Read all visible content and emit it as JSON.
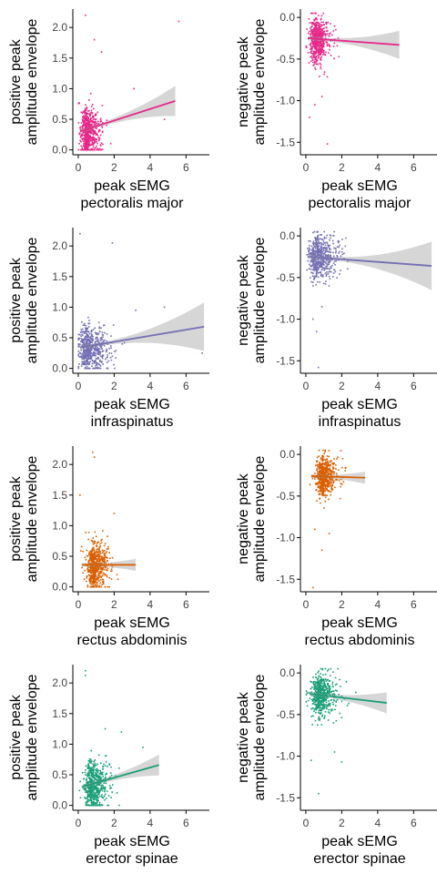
{
  "chart_data": [
    {
      "type": "scatter",
      "ylabel_lines": [
        "positive peak",
        "amplitude envelope"
      ],
      "xlabel_lines": [
        "peak sEMG",
        "pectoralis major"
      ],
      "xlim": [
        -0.3,
        7.3
      ],
      "ylim": [
        -0.08,
        2.3
      ],
      "xticks": [
        0,
        2,
        4,
        6
      ],
      "yticks": [
        0.0,
        0.5,
        1.0,
        1.5,
        2.0
      ],
      "color": "#E7298A",
      "fit": {
        "x0": 0.1,
        "y0": 0.3,
        "x1": 5.4,
        "y1": 0.8
      },
      "cloud": {
        "cx": 0.55,
        "sx": 0.45,
        "xmax": 5.6,
        "cy": 0.3,
        "sy": 0.2,
        "ymin": 0.0,
        "ymax": 1.8,
        "n": 600,
        "seed": 11
      },
      "outliers": [
        [
          0.4,
          2.2
        ],
        [
          5.6,
          2.1
        ],
        [
          0.9,
          1.8
        ],
        [
          1.3,
          1.6
        ],
        [
          3.1,
          1.0
        ],
        [
          4.8,
          0.5
        ]
      ]
    },
    {
      "type": "scatter",
      "ylabel_lines": [
        "negative peak",
        "amplitude envelope"
      ],
      "xlabel_lines": [
        "peak sEMG",
        "pectoralis major"
      ],
      "xlim": [
        -0.3,
        7.3
      ],
      "ylim": [
        -1.65,
        0.1
      ],
      "xticks": [
        0,
        2,
        4,
        6
      ],
      "yticks": [
        0.0,
        -0.5,
        -1.0,
        -1.5
      ],
      "color": "#E7298A",
      "fit": {
        "x0": 0.1,
        "y0": -0.25,
        "x1": 5.2,
        "y1": -0.33
      },
      "cloud": {
        "cx": 0.6,
        "sx": 0.45,
        "xmax": 5.0,
        "cy": -0.27,
        "sy": 0.14,
        "ymin": -0.9,
        "ymax": 0.05,
        "n": 550,
        "seed": 23
      },
      "outliers": [
        [
          0.2,
          -1.2
        ],
        [
          1.2,
          -1.52
        ],
        [
          0.5,
          -1.05
        ],
        [
          0.9,
          -0.95
        ]
      ]
    },
    {
      "type": "scatter",
      "ylabel_lines": [
        "positive peak",
        "amplitude envelope"
      ],
      "xlabel_lines": [
        "peak sEMG",
        "infraspinatus"
      ],
      "xlim": [
        -0.3,
        7.3
      ],
      "ylim": [
        -0.08,
        2.3
      ],
      "xticks": [
        0,
        2,
        4,
        6
      ],
      "yticks": [
        0.0,
        0.5,
        1.0,
        1.5,
        2.0
      ],
      "color": "#7570B3",
      "fit": {
        "x0": 0.1,
        "y0": 0.34,
        "x1": 7.0,
        "y1": 0.68
      },
      "cloud": {
        "cx": 0.6,
        "sx": 0.7,
        "xmax": 7.2,
        "cy": 0.32,
        "sy": 0.18,
        "ymin": 0.0,
        "ymax": 1.5,
        "n": 600,
        "seed": 37
      },
      "outliers": [
        [
          0.1,
          2.2
        ],
        [
          1.9,
          2.05
        ],
        [
          4.8,
          1.0
        ],
        [
          6.9,
          0.25
        ],
        [
          3.2,
          0.95
        ]
      ]
    },
    {
      "type": "scatter",
      "ylabel_lines": [
        "negative peak",
        "amplitude envelope"
      ],
      "xlabel_lines": [
        "peak sEMG",
        "infraspinatus"
      ],
      "xlim": [
        -0.3,
        7.3
      ],
      "ylim": [
        -1.65,
        0.1
      ],
      "xticks": [
        0,
        2,
        4,
        6
      ],
      "yticks": [
        0.0,
        -0.5,
        -1.0,
        -1.5
      ],
      "color": "#7570B3",
      "fit": {
        "x0": 0.1,
        "y0": -0.25,
        "x1": 7.0,
        "y1": -0.36
      },
      "cloud": {
        "cx": 0.7,
        "sx": 0.7,
        "xmax": 7.2,
        "cy": -0.25,
        "sy": 0.13,
        "ymin": -0.9,
        "ymax": 0.05,
        "n": 550,
        "seed": 41
      },
      "outliers": [
        [
          0.6,
          -1.15
        ],
        [
          0.4,
          -1.0
        ],
        [
          0.7,
          -1.58
        ],
        [
          0.9,
          -0.85
        ]
      ]
    },
    {
      "type": "scatter",
      "ylabel_lines": [
        "positive peak",
        "amplitude envelope"
      ],
      "xlabel_lines": [
        "peak sEMG",
        "rectus abdominis"
      ],
      "xlim": [
        -0.3,
        7.3
      ],
      "ylim": [
        -0.08,
        2.3
      ],
      "xticks": [
        0,
        2,
        4,
        6
      ],
      "yticks": [
        0.0,
        0.5,
        1.0,
        1.5,
        2.0
      ],
      "color": "#D95F02",
      "fit": {
        "x0": 0.2,
        "y0": 0.36,
        "x1": 3.2,
        "y1": 0.36
      },
      "cloud": {
        "cx": 0.9,
        "sx": 0.5,
        "xmax": 3.2,
        "cy": 0.34,
        "sy": 0.2,
        "ymin": 0.0,
        "ymax": 1.35,
        "n": 600,
        "seed": 53
      },
      "outliers": [
        [
          0.8,
          2.2
        ],
        [
          0.9,
          2.12
        ],
        [
          0.1,
          1.5
        ],
        [
          2.0,
          1.2
        ]
      ]
    },
    {
      "type": "scatter",
      "ylabel_lines": [
        "negative peak",
        "amplitude envelope"
      ],
      "xlabel_lines": [
        "peak sEMG",
        "rectus abdominis"
      ],
      "xlim": [
        -0.3,
        7.3
      ],
      "ylim": [
        -1.65,
        0.1
      ],
      "xticks": [
        0,
        2,
        4,
        6
      ],
      "yticks": [
        0.0,
        -0.5,
        -1.0,
        -1.5
      ],
      "color": "#D95F02",
      "fit": {
        "x0": 0.3,
        "y0": -0.26,
        "x1": 3.3,
        "y1": -0.28
      },
      "cloud": {
        "cx": 1.0,
        "sx": 0.45,
        "xmax": 3.3,
        "cy": -0.27,
        "sy": 0.12,
        "ymin": -0.85,
        "ymax": 0.05,
        "n": 550,
        "seed": 67
      },
      "outliers": [
        [
          0.4,
          -1.6
        ],
        [
          0.9,
          -1.15
        ],
        [
          0.5,
          -0.9
        ],
        [
          1.3,
          -0.95
        ]
      ]
    },
    {
      "type": "scatter",
      "ylabel_lines": [
        "positive peak",
        "amplitude envelope"
      ],
      "xlabel_lines": [
        "peak sEMG",
        "erector spinae"
      ],
      "xlim": [
        -0.3,
        7.3
      ],
      "ylim": [
        -0.08,
        2.3
      ],
      "xticks": [
        0,
        2,
        4,
        6
      ],
      "yticks": [
        0.0,
        0.5,
        1.0,
        1.5,
        2.0
      ],
      "color": "#1B9E77",
      "fit": {
        "x0": 0.2,
        "y0": 0.3,
        "x1": 4.5,
        "y1": 0.66
      },
      "cloud": {
        "cx": 0.8,
        "sx": 0.55,
        "xmax": 4.5,
        "cy": 0.32,
        "sy": 0.19,
        "ymin": 0.0,
        "ymax": 1.5,
        "n": 600,
        "seed": 79
      },
      "outliers": [
        [
          0.4,
          2.2
        ],
        [
          0.4,
          2.12
        ],
        [
          1.5,
          1.25
        ],
        [
          2.4,
          1.2
        ],
        [
          3.6,
          0.95
        ]
      ]
    },
    {
      "type": "scatter",
      "ylabel_lines": [
        "negative peak",
        "amplitude envelope"
      ],
      "xlabel_lines": [
        "peak sEMG",
        "erector spinae"
      ],
      "xlim": [
        -0.3,
        7.3
      ],
      "ylim": [
        -1.65,
        0.1
      ],
      "xticks": [
        0,
        2,
        4,
        6
      ],
      "yticks": [
        0.0,
        -0.5,
        -1.0,
        -1.5
      ],
      "color": "#1B9E77",
      "fit": {
        "x0": 0.2,
        "y0": -0.25,
        "x1": 4.5,
        "y1": -0.36
      },
      "cloud": {
        "cx": 0.8,
        "sx": 0.6,
        "xmax": 4.5,
        "cy": -0.26,
        "sy": 0.13,
        "ymin": -0.9,
        "ymax": 0.05,
        "n": 550,
        "seed": 97
      },
      "outliers": [
        [
          0.3,
          -1.05
        ],
        [
          0.7,
          -1.45
        ],
        [
          2.0,
          -1.07
        ],
        [
          1.6,
          -0.95
        ]
      ]
    }
  ]
}
